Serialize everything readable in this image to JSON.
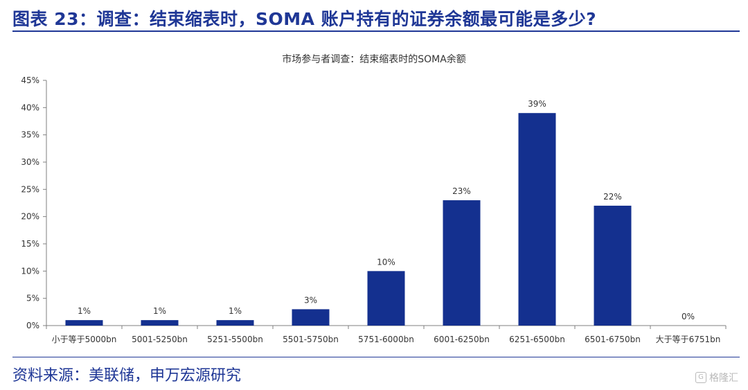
{
  "header": {
    "title": "图表 23：调查：结束缩表时，SOMA 账户持有的证券余额最可能是多少?"
  },
  "chart_data": {
    "type": "bar",
    "title": "市场参与者调查：结束缩表时的SOMA余额",
    "categories": [
      "小于等于5000bn",
      "5001-5250bn",
      "5251-5500bn",
      "5501-5750bn",
      "5751-6000bn",
      "6001-6250bn",
      "6251-6500bn",
      "6501-6750bn",
      "大于等于6751bn"
    ],
    "values": [
      1,
      1,
      1,
      3,
      10,
      23,
      39,
      22,
      0
    ],
    "data_labels": [
      "1%",
      "1%",
      "1%",
      "3%",
      "10%",
      "23%",
      "39%",
      "22%",
      "0%"
    ],
    "yticks": [
      "0%",
      "5%",
      "10%",
      "15%",
      "20%",
      "25%",
      "30%",
      "35%",
      "40%",
      "45%"
    ],
    "ylim": [
      0,
      45
    ],
    "xlabel": "",
    "ylabel": "",
    "grid": false,
    "bar_color": "#14308F"
  },
  "footer": {
    "source": "资料来源：美联储，申万宏源研究"
  },
  "watermark": {
    "text": "格隆汇",
    "icon": "G"
  }
}
